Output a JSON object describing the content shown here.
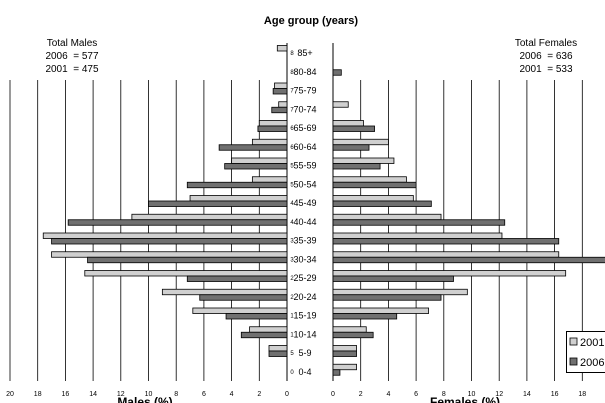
{
  "chart_data": {
    "type": "bar",
    "title": "Age group (years)",
    "xlabel_left": "Males (%)",
    "xlabel_right": "Females (%)",
    "x_ticks": [
      20,
      18,
      16,
      14,
      12,
      10,
      8,
      6,
      4,
      2,
      0
    ],
    "xlim": [
      0,
      20
    ],
    "categories": [
      "85+",
      "80-84",
      "75-79",
      "70-74",
      "65-69",
      "60-64",
      "55-59",
      "50-54",
      "45-49",
      "40-44",
      "35-39",
      "30-34",
      "25-29",
      "20-24",
      "15-19",
      "10-14",
      "5-9",
      "0-4"
    ],
    "small_labels_left": [
      "8",
      "8",
      "7",
      "7",
      "6",
      "6",
      "5",
      "5",
      "4",
      "4",
      "3",
      "3",
      "2",
      "2",
      "1",
      "1",
      "5",
      "0"
    ],
    "series": [
      {
        "name": "2001",
        "color": "#d0d0d0",
        "males": [
          0.7,
          0,
          0.9,
          0.6,
          2.0,
          2.5,
          4.0,
          2.5,
          7.0,
          11.2,
          17.6,
          17.0,
          14.6,
          9.0,
          6.8,
          2.7,
          1.3,
          0
        ],
        "females": [
          0,
          0,
          0,
          1.1,
          2.2,
          4.0,
          4.4,
          5.3,
          5.8,
          7.8,
          12.2,
          16.3,
          16.8,
          9.7,
          6.9,
          2.4,
          1.7,
          1.7
        ]
      },
      {
        "name": "2006",
        "color": "#707070",
        "males": [
          0,
          0,
          1.0,
          1.1,
          2.1,
          4.9,
          4.5,
          7.2,
          10.0,
          15.8,
          17.0,
          14.4,
          7.2,
          6.3,
          4.4,
          3.3,
          1.3,
          0
        ],
        "females": [
          0,
          0.6,
          0,
          0,
          3.0,
          2.6,
          3.4,
          6.0,
          7.1,
          12.4,
          16.3,
          19.8,
          8.7,
          7.8,
          4.6,
          2.9,
          1.7,
          0.5
        ]
      }
    ],
    "totals": {
      "males_title": "Total Males",
      "males_2006": "2006  = 577",
      "males_2001": "2001  = 475",
      "females_title": "Total Females",
      "females_2006": "2006  = 636",
      "females_2001": "2001  = 533"
    },
    "grid": true,
    "legend_position": "bottom-right"
  }
}
